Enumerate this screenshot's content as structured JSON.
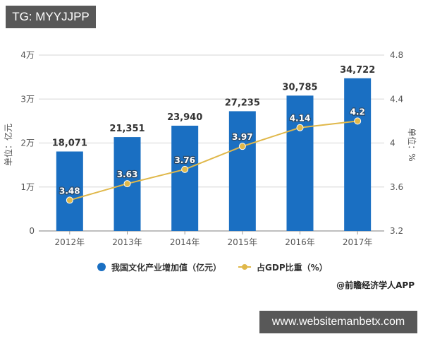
{
  "overlays": {
    "top_tag": "TG: MYYJJPP",
    "bottom_tag": "www.websitemanbetx.com"
  },
  "chart": {
    "left_axis_title": "单位：亿元",
    "right_axis_title": "单位：%",
    "left_ticks": [
      "0",
      "1万",
      "2万",
      "3万",
      "4万"
    ],
    "right_ticks": [
      "3.2",
      "3.6",
      "4",
      "4.4",
      "4.8"
    ],
    "categories": [
      "2012年",
      "2013年",
      "2014年",
      "2015年",
      "2016年",
      "2017年"
    ],
    "bar_labels": [
      "18,071",
      "21,351",
      "23,940",
      "27,235",
      "30,785",
      "34,722"
    ],
    "line_labels": [
      "3.48",
      "3.63",
      "3.76",
      "3.97",
      "4.14",
      "4.2"
    ],
    "legend": {
      "bar": "我国文化产业增加值（亿元）",
      "line": "占GDP比重（%）"
    },
    "source": "@前瞻经济学人APP",
    "colors": {
      "bar": "#1a6fc2",
      "line": "#e0b84a",
      "grid": "#dddddd"
    }
  },
  "chart_data": {
    "type": "bar",
    "title": "",
    "categories": [
      "2012年",
      "2013年",
      "2014年",
      "2015年",
      "2016年",
      "2017年"
    ],
    "series": [
      {
        "name": "我国文化产业增加值（亿元）",
        "type": "bar",
        "axis": "left",
        "values": [
          18071,
          21351,
          23940,
          27235,
          30785,
          34722
        ]
      },
      {
        "name": "占GDP比重（%）",
        "type": "line",
        "axis": "right",
        "values": [
          3.48,
          3.63,
          3.76,
          3.97,
          4.14,
          4.2
        ]
      }
    ],
    "xlabel": "",
    "ylabel": "单位：亿元",
    "ylabel_right": "单位：%",
    "ylim": [
      0,
      40000
    ],
    "ylim_right": [
      3.2,
      4.8
    ],
    "yticks": [
      "0",
      "1万",
      "2万",
      "3万",
      "4万"
    ],
    "yticks_right": [
      3.2,
      3.6,
      4,
      4.4,
      4.8
    ],
    "grid": true,
    "legend_position": "bottom",
    "source": "@前瞻经济学人APP"
  }
}
